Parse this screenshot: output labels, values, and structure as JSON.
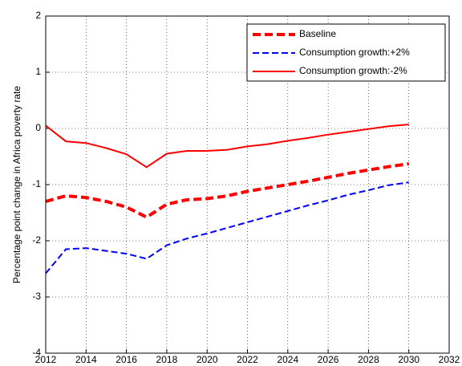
{
  "chart_data": {
    "type": "line",
    "y_label": "Percentage point change in Africa poverty rate",
    "x": [
      2012,
      2013,
      2014,
      2015,
      2016,
      2017,
      2018,
      2019,
      2020,
      2021,
      2022,
      2023,
      2024,
      2025,
      2026,
      2027,
      2028,
      2029,
      2030
    ],
    "series": [
      {
        "name": "Baseline",
        "color": "#ff0000",
        "dash": "dashed",
        "line_width": 4,
        "values": [
          -1.3,
          -1.2,
          -1.23,
          -1.3,
          -1.4,
          -1.58,
          -1.35,
          -1.27,
          -1.25,
          -1.2,
          -1.12,
          -1.06,
          -1.0,
          -0.94,
          -0.87,
          -0.8,
          -0.74,
          -0.68,
          -0.63
        ]
      },
      {
        "name": "Consumption growth:+2%",
        "color": "#0000ff",
        "dash": "dashed",
        "line_width": 2,
        "values": [
          -2.58,
          -2.15,
          -2.13,
          -2.18,
          -2.23,
          -2.32,
          -2.08,
          -1.96,
          -1.87,
          -1.77,
          -1.67,
          -1.57,
          -1.47,
          -1.37,
          -1.28,
          -1.18,
          -1.1,
          -1.01,
          -0.96
        ]
      },
      {
        "name": "Consumption growth:-2%",
        "color": "#ff0000",
        "dash": "solid",
        "line_width": 2,
        "values": [
          0.05,
          -0.23,
          -0.26,
          -0.35,
          -0.46,
          -0.69,
          -0.45,
          -0.4,
          -0.4,
          -0.38,
          -0.32,
          -0.28,
          -0.22,
          -0.17,
          -0.11,
          -0.06,
          -0.01,
          0.04,
          0.07
        ]
      }
    ],
    "xlim": [
      2012,
      2032
    ],
    "xticks": [
      2012,
      2014,
      2016,
      2018,
      2020,
      2022,
      2024,
      2026,
      2028,
      2030,
      2032
    ],
    "ylim": [
      -4,
      2
    ],
    "yticks": [
      -4,
      -3,
      -2,
      -1,
      0,
      1,
      2
    ],
    "grid": true,
    "legend": "upper right"
  }
}
